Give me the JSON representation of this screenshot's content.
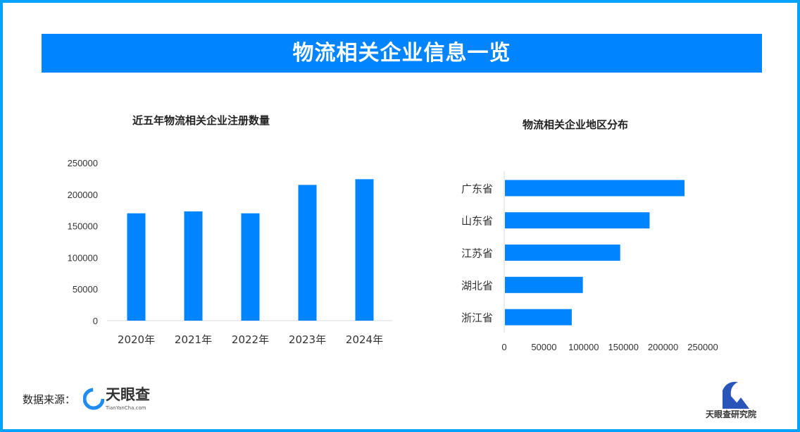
{
  "header": {
    "title": "物流相关企业信息一览"
  },
  "colors": {
    "bar": "#0084ff",
    "frame": "#00a2ff",
    "banner": "#0084ff"
  },
  "footer": {
    "source_label": "数据来源：",
    "source_logo": "天眼查",
    "source_logo_sub": "TianYanCha.com",
    "institute": "天眼查研究院"
  },
  "chart_data": [
    {
      "type": "bar",
      "title": "近五年物流相关企业注册数量",
      "categories": [
        "2020年",
        "2021年",
        "2022年",
        "2023年",
        "2024年"
      ],
      "values": [
        170000,
        173000,
        170000,
        215000,
        224000
      ],
      "ylim": [
        0,
        250000
      ],
      "yticks": [
        "0",
        "50000",
        "100000",
        "150000",
        "200000",
        "250000"
      ],
      "grid": false
    },
    {
      "type": "bar",
      "orientation": "horizontal",
      "title": "物流相关企业地区分布",
      "categories": [
        "广东省",
        "山东省",
        "江苏省",
        "湖北省",
        "浙江省"
      ],
      "values": [
        227000,
        183000,
        146000,
        99000,
        85000
      ],
      "xlim": [
        0,
        250000
      ],
      "xticks": [
        "0",
        "50000",
        "100000",
        "150000",
        "200000",
        "250000"
      ],
      "grid": false
    }
  ]
}
